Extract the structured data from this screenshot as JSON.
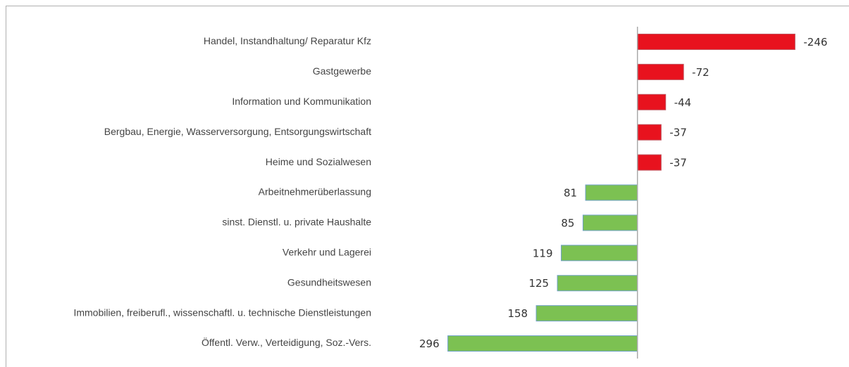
{
  "chart_data": {
    "type": "barh",
    "categories": [
      "Handel, Instandhaltung/ Reparatur Kfz",
      "Gastgewerbe",
      "Information und Kommunikation",
      "Bergbau, Energie, Wasserversorgung, Entsorgungswirtschaft",
      "Heime und Sozialwesen",
      "Arbeitnehmerüberlassung",
      "sinst. Dienstl. u. private Haushalte",
      "Verkehr und Lagerei",
      "Gesundheitswesen",
      "Immobilien, freiberufl., wissenschaftl. u. technische Dienstleistungen",
      "Öffentl. Verw., Verteidigung, Soz.-Vers."
    ],
    "values": [
      -246,
      -72,
      -44,
      -37,
      -37,
      81,
      85,
      119,
      125,
      158,
      296
    ],
    "xlim": [
      300,
      -250
    ],
    "negative_color": "#e8121e",
    "positive_color": "#7cc152"
  }
}
